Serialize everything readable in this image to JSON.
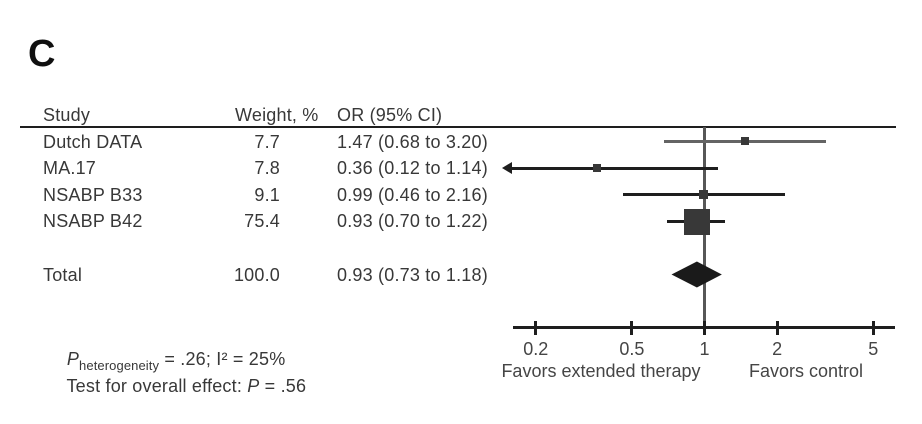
{
  "panel_label": "C",
  "table": {
    "headers": {
      "study": "Study",
      "weight": "Weight, %",
      "or_ci": "OR (95% CI)"
    },
    "rows": [
      {
        "study": "Dutch DATA",
        "weight": "7.7",
        "or_ci": "1.47 (0.68 to 3.20)"
      },
      {
        "study": "MA.17",
        "weight": "7.8",
        "or_ci": "0.36 (0.12 to 1.14)"
      },
      {
        "study": "NSABP B33",
        "weight": "9.1",
        "or_ci": "0.99 (0.46 to 2.16)"
      },
      {
        "study": "NSABP B42",
        "weight": "75.4",
        "or_ci": "0.93 (0.70 to 1.22)"
      }
    ],
    "total_row": {
      "study": "Total",
      "weight": "100.0",
      "or_ci": "0.93 (0.73 to 1.18)"
    }
  },
  "stats": {
    "heterogeneity_p_symbol": "P",
    "heterogeneity_subscript": "heterogeneity",
    "heterogeneity_rest": " = .26; I² = 25%",
    "overall_effect_prefix": "Test for overall effect: ",
    "overall_effect_p_symbol": "P",
    "overall_effect_rest": " = .56"
  },
  "chart_data": {
    "type": "forest",
    "x_scale": "log",
    "x_ticks": [
      0.2,
      0.5,
      1,
      2,
      5
    ],
    "xlim": [
      0.16,
      6.15
    ],
    "reference_line": 1,
    "x_axis_labels": {
      "left": "Favors extended therapy",
      "right": "Favors control"
    },
    "studies": [
      {
        "name": "Dutch DATA",
        "weight_pct": 7.7,
        "or": 1.47,
        "ci_low": 0.68,
        "ci_high": 3.2,
        "ci_low_truncated": false,
        "line_color": "#646464"
      },
      {
        "name": "MA.17",
        "weight_pct": 7.8,
        "or": 0.36,
        "ci_low": 0.12,
        "ci_high": 1.14,
        "ci_low_truncated": true,
        "line_color": "#1e1e1e"
      },
      {
        "name": "NSABP B33",
        "weight_pct": 9.1,
        "or": 0.99,
        "ci_low": 0.46,
        "ci_high": 2.16,
        "ci_low_truncated": false,
        "line_color": "#1e1e1e"
      },
      {
        "name": "NSABP B42",
        "weight_pct": 75.4,
        "or": 0.93,
        "ci_low": 0.7,
        "ci_high": 1.22,
        "ci_low_truncated": false,
        "line_color": "#1e1e1e"
      }
    ],
    "total": {
      "name": "Total",
      "weight_pct": 100.0,
      "or": 0.93,
      "ci_low": 0.73,
      "ci_high": 1.18
    }
  },
  "colors": {
    "text": "#383838",
    "heading": "#101010",
    "rule": "#1e1e1e",
    "axis": "#1e1e1e",
    "reference_line": "#575757",
    "marker": "#383838",
    "diamond": "#1a1a1a",
    "axis_text": "#454545"
  }
}
